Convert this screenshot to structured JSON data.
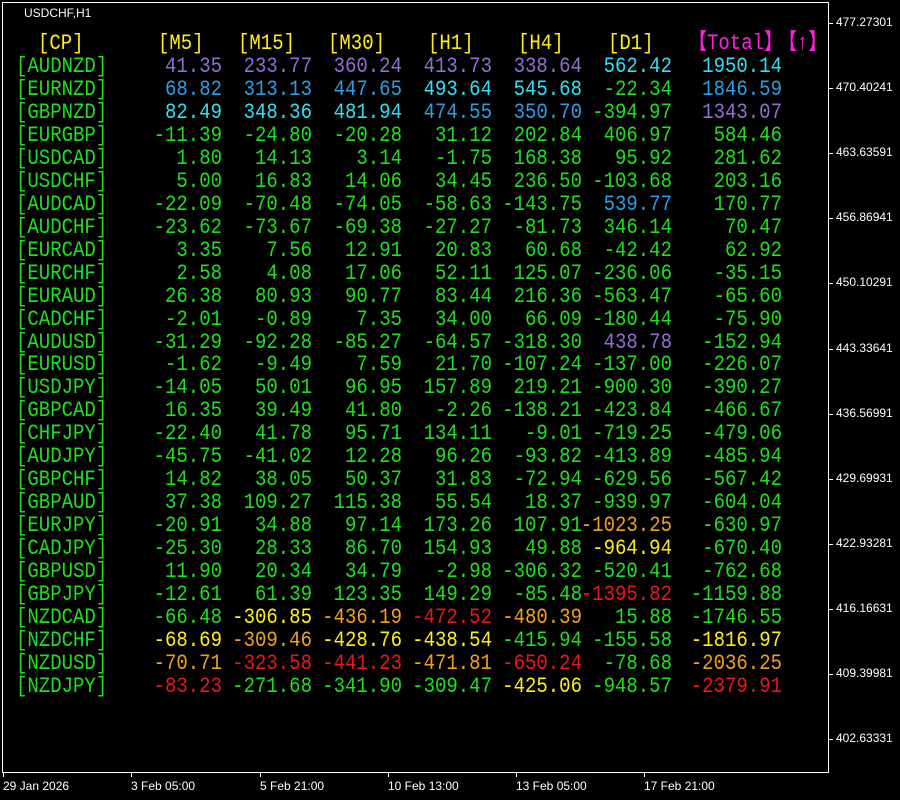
{
  "window": {
    "symbol_label": "USDCHF,H1"
  },
  "palette": {
    "purple": "#8f6fd0",
    "blue": "#2a9ee6",
    "cyan": "#2fe0f4",
    "green": "#1ee01e",
    "yellow": "#ffee10",
    "orange": "#f0a020",
    "red": "#e81818",
    "header": "#ffee10",
    "pair": "#1ee01e",
    "total_header": "#ff20e0"
  },
  "table": {
    "headers": [
      "[CP]",
      "[M5]",
      "[M15]",
      "[M30]",
      "[H1]",
      "[H4]",
      "[D1]",
      "【Total】",
      "【↑】"
    ],
    "rows": [
      {
        "pair": "[AUDNZD]",
        "values": [
          "41.35",
          "233.77",
          "360.24",
          "413.73",
          "338.64",
          "562.42",
          "1950.14"
        ],
        "colors": [
          "purple",
          "purple",
          "purple",
          "purple",
          "purple",
          "cyan",
          "cyan"
        ]
      },
      {
        "pair": "[EURNZD]",
        "values": [
          "68.82",
          "313.13",
          "447.65",
          "493.64",
          "545.68",
          "-22.34",
          "1846.59"
        ],
        "colors": [
          "blue",
          "blue",
          "blue",
          "cyan",
          "cyan",
          "green",
          "blue"
        ]
      },
      {
        "pair": "[GBPNZD]",
        "values": [
          "82.49",
          "348.36",
          "481.94",
          "474.55",
          "350.70",
          "-394.97",
          "1343.07"
        ],
        "colors": [
          "cyan",
          "cyan",
          "cyan",
          "blue",
          "blue",
          "green",
          "purple"
        ]
      },
      {
        "pair": "[EURGBP]",
        "values": [
          "-11.39",
          "-24.80",
          "-20.28",
          "31.12",
          "202.84",
          "406.97",
          "584.46"
        ],
        "colors": [
          "green",
          "green",
          "green",
          "green",
          "green",
          "green",
          "green"
        ]
      },
      {
        "pair": "[USDCAD]",
        "values": [
          "1.80",
          "14.13",
          "3.14",
          "-1.75",
          "168.38",
          "95.92",
          "281.62"
        ],
        "colors": [
          "green",
          "green",
          "green",
          "green",
          "green",
          "green",
          "green"
        ]
      },
      {
        "pair": "[USDCHF]",
        "values": [
          "5.00",
          "16.83",
          "14.06",
          "34.45",
          "236.50",
          "-103.68",
          "203.16"
        ],
        "colors": [
          "green",
          "green",
          "green",
          "green",
          "green",
          "green",
          "green"
        ]
      },
      {
        "pair": "[AUDCAD]",
        "values": [
          "-22.09",
          "-70.48",
          "-74.05",
          "-58.63",
          "-143.75",
          "539.77",
          "170.77"
        ],
        "colors": [
          "green",
          "green",
          "green",
          "green",
          "green",
          "blue",
          "green"
        ]
      },
      {
        "pair": "[AUDCHF]",
        "values": [
          "-23.62",
          "-73.67",
          "-69.38",
          "-27.27",
          "-81.73",
          "346.14",
          "70.47"
        ],
        "colors": [
          "green",
          "green",
          "green",
          "green",
          "green",
          "green",
          "green"
        ]
      },
      {
        "pair": "[EURCAD]",
        "values": [
          "3.35",
          "7.56",
          "12.91",
          "20.83",
          "60.68",
          "-42.42",
          "62.92"
        ],
        "colors": [
          "green",
          "green",
          "green",
          "green",
          "green",
          "green",
          "green"
        ]
      },
      {
        "pair": "[EURCHF]",
        "values": [
          "2.58",
          "4.08",
          "17.06",
          "52.11",
          "125.07",
          "-236.06",
          "-35.15"
        ],
        "colors": [
          "green",
          "green",
          "green",
          "green",
          "green",
          "green",
          "green"
        ]
      },
      {
        "pair": "[EURAUD]",
        "values": [
          "26.38",
          "80.93",
          "90.77",
          "83.44",
          "216.36",
          "-563.47",
          "-65.60"
        ],
        "colors": [
          "green",
          "green",
          "green",
          "green",
          "green",
          "green",
          "green"
        ]
      },
      {
        "pair": "[CADCHF]",
        "values": [
          "-2.01",
          "-0.89",
          "7.35",
          "34.00",
          "66.09",
          "-180.44",
          "-75.90"
        ],
        "colors": [
          "green",
          "green",
          "green",
          "green",
          "green",
          "green",
          "green"
        ]
      },
      {
        "pair": "[AUDUSD]",
        "values": [
          "-31.29",
          "-92.28",
          "-85.27",
          "-64.57",
          "-318.30",
          "438.78",
          "-152.94"
        ],
        "colors": [
          "green",
          "green",
          "green",
          "green",
          "green",
          "purple",
          "green"
        ]
      },
      {
        "pair": "[EURUSD]",
        "values": [
          "-1.62",
          "-9.49",
          "7.59",
          "21.70",
          "-107.24",
          "-137.00",
          "-226.07"
        ],
        "colors": [
          "green",
          "green",
          "green",
          "green",
          "green",
          "green",
          "green"
        ]
      },
      {
        "pair": "[USDJPY]",
        "values": [
          "-14.05",
          "50.01",
          "96.95",
          "157.89",
          "219.21",
          "-900.30",
          "-390.27"
        ],
        "colors": [
          "green",
          "green",
          "green",
          "green",
          "green",
          "green",
          "green"
        ]
      },
      {
        "pair": "[GBPCAD]",
        "values": [
          "16.35",
          "39.49",
          "41.80",
          "-2.26",
          "-138.21",
          "-423.84",
          "-466.67"
        ],
        "colors": [
          "green",
          "green",
          "green",
          "green",
          "green",
          "green",
          "green"
        ]
      },
      {
        "pair": "[CHFJPY]",
        "values": [
          "-22.40",
          "41.78",
          "95.71",
          "134.11",
          "-9.01",
          "-719.25",
          "-479.06"
        ],
        "colors": [
          "green",
          "green",
          "green",
          "green",
          "green",
          "green",
          "green"
        ]
      },
      {
        "pair": "[AUDJPY]",
        "values": [
          "-45.75",
          "-41.02",
          "12.28",
          "96.26",
          "-93.82",
          "-413.89",
          "-485.94"
        ],
        "colors": [
          "green",
          "green",
          "green",
          "green",
          "green",
          "green",
          "green"
        ]
      },
      {
        "pair": "[GBPCHF]",
        "values": [
          "14.82",
          "38.05",
          "50.37",
          "31.83",
          "-72.94",
          "-629.56",
          "-567.42"
        ],
        "colors": [
          "green",
          "green",
          "green",
          "green",
          "green",
          "green",
          "green"
        ]
      },
      {
        "pair": "[GBPAUD]",
        "values": [
          "37.38",
          "109.27",
          "115.38",
          "55.54",
          "18.37",
          "-939.97",
          "-604.04"
        ],
        "colors": [
          "green",
          "green",
          "green",
          "green",
          "green",
          "green",
          "green"
        ]
      },
      {
        "pair": "[EURJPY]",
        "values": [
          "-20.91",
          "34.88",
          "97.14",
          "173.26",
          "107.91",
          "-1023.25",
          "-630.97"
        ],
        "colors": [
          "green",
          "green",
          "green",
          "green",
          "green",
          "orange",
          "green"
        ]
      },
      {
        "pair": "[CADJPY]",
        "values": [
          "-25.30",
          "28.33",
          "86.70",
          "154.93",
          "49.88",
          "-964.94",
          "-670.40"
        ],
        "colors": [
          "green",
          "green",
          "green",
          "green",
          "green",
          "yellow",
          "green"
        ]
      },
      {
        "pair": "[GBPUSD]",
        "values": [
          "11.90",
          "20.34",
          "34.79",
          "-2.98",
          "-306.32",
          "-520.41",
          "-762.68"
        ],
        "colors": [
          "green",
          "green",
          "green",
          "green",
          "green",
          "green",
          "green"
        ]
      },
      {
        "pair": "[GBPJPY]",
        "values": [
          "-12.61",
          "61.39",
          "123.35",
          "149.29",
          "-85.48",
          "-1395.82",
          "-1159.88"
        ],
        "colors": [
          "green",
          "green",
          "green",
          "green",
          "green",
          "red",
          "green"
        ]
      },
      {
        "pair": "[NZDCAD]",
        "values": [
          "-66.48",
          "-306.85",
          "-436.19",
          "-472.52",
          "-480.39",
          "15.88",
          "-1746.55"
        ],
        "colors": [
          "green",
          "yellow",
          "orange",
          "red",
          "orange",
          "green",
          "green"
        ]
      },
      {
        "pair": "[NZDCHF]",
        "values": [
          "-68.69",
          "-309.46",
          "-428.76",
          "-438.54",
          "-415.94",
          "-155.58",
          "-1816.97"
        ],
        "colors": [
          "yellow",
          "orange",
          "yellow",
          "yellow",
          "green",
          "green",
          "yellow"
        ]
      },
      {
        "pair": "[NZDUSD]",
        "values": [
          "-70.71",
          "-323.58",
          "-441.23",
          "-471.81",
          "-650.24",
          "-78.68",
          "-2036.25"
        ],
        "colors": [
          "orange",
          "red",
          "red",
          "orange",
          "red",
          "green",
          "orange"
        ]
      },
      {
        "pair": "[NZDJPY]",
        "values": [
          "-83.23",
          "-271.68",
          "-341.90",
          "-309.47",
          "-425.06",
          "-948.57",
          "-2379.91"
        ],
        "colors": [
          "red",
          "green",
          "green",
          "green",
          "yellow",
          "green",
          "red"
        ]
      }
    ]
  },
  "price_axis": [
    "477.27301",
    "470.40241",
    "463.63591",
    "456.86941",
    "450.10291",
    "443.33641",
    "436.56991",
    "429.69931",
    "422.93281",
    "416.16631",
    "409.39981",
    "402.63331"
  ],
  "time_axis": [
    "29 Jan 2026",
    "3 Feb 05:00",
    "5 Feb 21:00",
    "10 Feb 13:00",
    "13 Feb 05:00",
    "17 Feb 21:00"
  ]
}
